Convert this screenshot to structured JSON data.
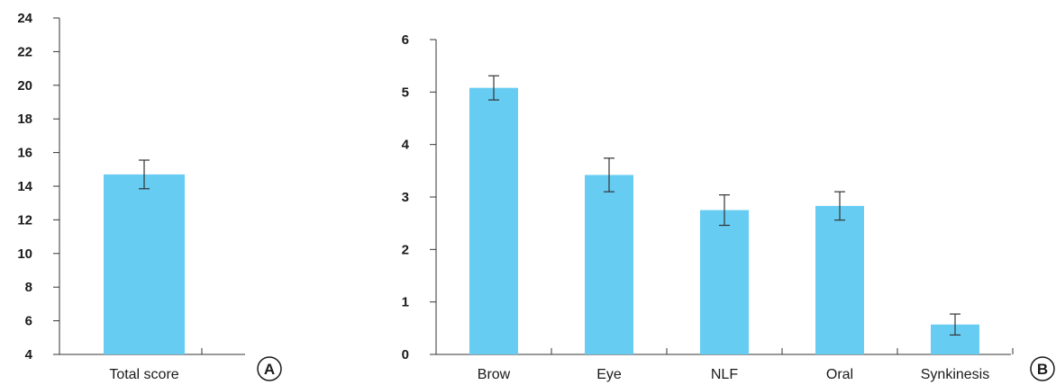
{
  "chart_data": [
    {
      "panel": "A",
      "type": "bar",
      "categories": [
        "Total score"
      ],
      "values": [
        14.7
      ],
      "errors": [
        0.85
      ],
      "ylim": [
        4,
        24
      ],
      "yticks": [
        4,
        6,
        8,
        10,
        12,
        14,
        16,
        18,
        20,
        22,
        24
      ],
      "bar_color": "#66ccf2",
      "grid": false
    },
    {
      "panel": "B",
      "type": "bar",
      "categories": [
        "Brow",
        "Eye",
        "NLF",
        "Oral",
        "Synkinesis"
      ],
      "values": [
        5.08,
        3.42,
        2.75,
        2.83,
        0.57
      ],
      "errors": [
        0.23,
        0.32,
        0.29,
        0.27,
        0.2
      ],
      "ylim": [
        0,
        6
      ],
      "yticks": [
        0,
        1,
        2,
        3,
        4,
        5,
        6
      ],
      "bar_color": "#66ccf2",
      "grid": false
    }
  ]
}
